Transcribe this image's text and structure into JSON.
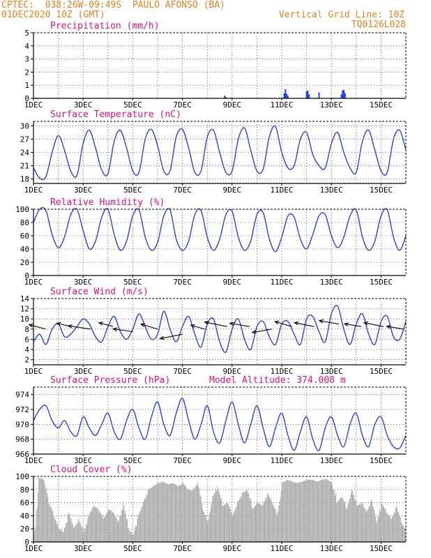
{
  "header": {
    "line1": "CPTEC:  038:26W-09:49S  PAULO AFONSO (BA)",
    "line2": "01DEC2020 10Z (GMT)",
    "grid_note": "Vertical Grid Line: 10Z",
    "code": "TQ0126L028"
  },
  "colors": {
    "header": "#e8801c",
    "title": "#e0107a",
    "line": "#2b3fe6",
    "cloud": "#a9a9a9"
  },
  "x_ticks": [
    "1DEC",
    "3DEC",
    "5DEC",
    "7DEC",
    "9DEC",
    "11DEC",
    "13DEC",
    "15DEC"
  ],
  "chart_data": [
    {
      "id": "precip",
      "type": "bar",
      "title": "Precipitation (mm/h)",
      "ylim": [
        0,
        5
      ],
      "yticks": [
        0,
        1,
        2,
        3,
        4,
        5
      ],
      "xlim_days": [
        1,
        16
      ],
      "x_days": [
        1.1,
        1.15,
        8.7,
        8.75,
        11.1,
        11.15,
        11.2,
        11.25,
        12.0,
        12.05,
        12.1,
        12.5,
        13.4,
        13.45,
        13.5,
        13.55
      ],
      "values": [
        0.05,
        0.05,
        0.2,
        0.1,
        0.4,
        0.7,
        0.35,
        0.2,
        0.55,
        0.6,
        0.3,
        0.45,
        0.3,
        0.6,
        0.65,
        0.4
      ]
    },
    {
      "id": "temp",
      "type": "line",
      "title": "Surface Temperature (nC)",
      "ylim": [
        17,
        31
      ],
      "yticks": [
        18,
        21,
        24,
        27,
        30
      ],
      "xlim_days": [
        1,
        16
      ],
      "x_days": [
        1.0,
        1.25,
        1.5,
        1.75,
        2.0,
        2.25,
        2.5,
        2.75,
        3.0,
        3.25,
        3.5,
        3.75,
        4.0,
        4.25,
        4.5,
        4.75,
        5.0,
        5.25,
        5.5,
        5.75,
        6.0,
        6.25,
        6.5,
        6.75,
        7.0,
        7.25,
        7.5,
        7.75,
        8.0,
        8.25,
        8.5,
        8.75,
        9.0,
        9.25,
        9.5,
        9.75,
        10.0,
        10.25,
        10.5,
        10.75,
        11.0,
        11.25,
        11.5,
        11.75,
        12.0,
        12.25,
        12.5,
        12.75,
        13.0,
        13.25,
        13.5,
        13.75,
        14.0,
        14.25,
        14.5,
        14.75,
        15.0,
        15.25,
        15.5,
        15.75,
        16.0
      ],
      "values": [
        20.5,
        18.2,
        18.5,
        24.0,
        27.8,
        24.5,
        19.8,
        18.8,
        26.0,
        29.0,
        25.0,
        20.0,
        19.2,
        26.5,
        29.0,
        25.0,
        19.8,
        19.5,
        27.0,
        29.2,
        25.5,
        19.8,
        19.8,
        27.5,
        29.2,
        25.0,
        19.5,
        19.8,
        27.5,
        29.0,
        24.0,
        19.5,
        19.8,
        27.0,
        29.5,
        24.5,
        19.8,
        20.2,
        27.5,
        29.8,
        24.0,
        20.5,
        21.0,
        27.0,
        28.5,
        23.5,
        21.0,
        20.5,
        26.0,
        28.5,
        24.0,
        20.5,
        19.5,
        26.5,
        29.0,
        24.5,
        19.8,
        19.5,
        27.0,
        29.0,
        24.5
      ]
    },
    {
      "id": "rh",
      "type": "line",
      "title": "Relative Humidity (%)",
      "ylim": [
        0,
        100
      ],
      "yticks": [
        0,
        20,
        40,
        60,
        80,
        100
      ],
      "xlim_days": [
        1,
        16
      ],
      "x_days": [
        1.0,
        1.25,
        1.5,
        1.75,
        2.0,
        2.25,
        2.5,
        2.75,
        3.0,
        3.25,
        3.5,
        3.75,
        4.0,
        4.25,
        4.5,
        4.75,
        5.0,
        5.25,
        5.5,
        5.75,
        6.0,
        6.25,
        6.5,
        6.75,
        7.0,
        7.25,
        7.5,
        7.75,
        8.0,
        8.25,
        8.5,
        8.75,
        9.0,
        9.25,
        9.5,
        9.75,
        10.0,
        10.25,
        10.5,
        10.75,
        11.0,
        11.25,
        11.5,
        11.75,
        12.0,
        12.25,
        12.5,
        12.75,
        13.0,
        13.25,
        13.5,
        13.75,
        14.0,
        14.25,
        14.5,
        14.75,
        15.0,
        15.25,
        15.5,
        15.75,
        16.0
      ],
      "values": [
        80,
        100,
        98,
        62,
        42,
        58,
        92,
        100,
        68,
        40,
        52,
        88,
        100,
        62,
        38,
        52,
        90,
        99,
        58,
        38,
        50,
        90,
        99,
        55,
        38,
        52,
        92,
        98,
        58,
        38,
        55,
        92,
        97,
        58,
        38,
        52,
        92,
        95,
        55,
        36,
        58,
        90,
        88,
        55,
        40,
        62,
        90,
        92,
        60,
        42,
        58,
        90,
        99,
        58,
        38,
        52,
        90,
        99,
        58,
        38,
        60
      ]
    },
    {
      "id": "wind",
      "type": "line",
      "title": "Surface Wind (m/s)",
      "ylim": [
        1,
        14
      ],
      "yticks": [
        2,
        4,
        6,
        8,
        10,
        12,
        14
      ],
      "xlim_days": [
        1,
        16
      ],
      "x_days": [
        1.0,
        1.25,
        1.5,
        1.75,
        2.0,
        2.25,
        2.5,
        2.75,
        3.0,
        3.25,
        3.5,
        3.75,
        4.0,
        4.25,
        4.5,
        4.75,
        5.0,
        5.25,
        5.5,
        5.75,
        6.0,
        6.25,
        6.5,
        6.75,
        7.0,
        7.25,
        7.5,
        7.75,
        8.0,
        8.25,
        8.5,
        8.75,
        9.0,
        9.25,
        9.5,
        9.75,
        10.0,
        10.25,
        10.5,
        10.75,
        11.0,
        11.25,
        11.5,
        11.75,
        12.0,
        12.25,
        12.5,
        12.75,
        13.0,
        13.25,
        13.5,
        13.75,
        14.0,
        14.25,
        14.5,
        14.75,
        15.0,
        15.25,
        15.5,
        15.75,
        16.0
      ],
      "values": [
        5.5,
        7.0,
        5.0,
        8.0,
        9.0,
        6.5,
        7.0,
        8.5,
        10.0,
        9.0,
        6.5,
        5.5,
        8.5,
        10.5,
        7.5,
        6.0,
        8.0,
        11.0,
        8.5,
        6.0,
        7.0,
        11.5,
        8.0,
        5.5,
        8.5,
        10.5,
        7.0,
        4.5,
        9.0,
        10.0,
        5.5,
        3.5,
        8.0,
        10.0,
        6.0,
        4.0,
        8.5,
        9.5,
        6.5,
        5.0,
        9.0,
        9.5,
        7.0,
        5.0,
        10.0,
        10.5,
        7.5,
        5.5,
        11.0,
        12.5,
        8.0,
        5.0,
        9.0,
        11.0,
        7.0,
        5.0,
        9.5,
        10.5,
        6.5,
        6.0,
        9.5
      ],
      "arrows": [
        {
          "x_day": 1.5,
          "y": 8.0,
          "dx": -0.6,
          "dy": 0.8
        },
        {
          "x_day": 2.5,
          "y": 8.5,
          "dx": -0.5,
          "dy": 0.6
        },
        {
          "x_day": 3.3,
          "y": 8.0,
          "dx": -0.8,
          "dy": 0.6
        },
        {
          "x_day": 4.2,
          "y": 8.5,
          "dx": -0.5,
          "dy": 0.7
        },
        {
          "x_day": 5.0,
          "y": 7.5,
          "dx": -0.7,
          "dy": 0.5
        },
        {
          "x_day": 6.0,
          "y": 8.0,
          "dx": -0.6,
          "dy": 0.9
        },
        {
          "x_day": 7.0,
          "y": 7.0,
          "dx": -0.8,
          "dy": -0.8
        },
        {
          "x_day": 7.9,
          "y": 8.0,
          "dx": -0.5,
          "dy": 0.7
        },
        {
          "x_day": 8.8,
          "y": 8.5,
          "dx": -0.8,
          "dy": 0.8
        },
        {
          "x_day": 9.7,
          "y": 8.5,
          "dx": -0.7,
          "dy": 0.6
        },
        {
          "x_day": 10.6,
          "y": 8.0,
          "dx": -0.7,
          "dy": -0.6
        },
        {
          "x_day": 11.4,
          "y": 8.5,
          "dx": -0.6,
          "dy": 0.9
        },
        {
          "x_day": 12.3,
          "y": 8.5,
          "dx": -0.7,
          "dy": 0.7
        },
        {
          "x_day": 13.3,
          "y": 9.0,
          "dx": -0.7,
          "dy": 0.6
        },
        {
          "x_day": 14.2,
          "y": 8.5,
          "dx": -0.6,
          "dy": 0.5
        },
        {
          "x_day": 15.1,
          "y": 8.5,
          "dx": -0.7,
          "dy": 0.7
        },
        {
          "x_day": 15.9,
          "y": 8.0,
          "dx": -0.6,
          "dy": 0.5
        }
      ]
    },
    {
      "id": "pres",
      "type": "line",
      "title": "Surface Pressure (hPa)",
      "subtitle": "Model Altitude: 374.008 m",
      "ylim": [
        966,
        975
      ],
      "yticks": [
        966,
        968,
        970,
        972,
        974
      ],
      "xlim_days": [
        1,
        16
      ],
      "x_days": [
        1.0,
        1.25,
        1.5,
        1.75,
        2.0,
        2.25,
        2.5,
        2.75,
        3.0,
        3.25,
        3.5,
        3.75,
        4.0,
        4.25,
        4.5,
        4.75,
        5.0,
        5.25,
        5.5,
        5.75,
        6.0,
        6.25,
        6.5,
        6.75,
        7.0,
        7.25,
        7.5,
        7.75,
        8.0,
        8.25,
        8.5,
        8.75,
        9.0,
        9.25,
        9.5,
        9.75,
        10.0,
        10.25,
        10.5,
        10.75,
        11.0,
        11.25,
        11.5,
        11.75,
        12.0,
        12.25,
        12.5,
        12.75,
        13.0,
        13.25,
        13.5,
        13.75,
        14.0,
        14.25,
        14.5,
        14.75,
        15.0,
        15.25,
        15.5,
        15.75,
        16.0
      ],
      "values": [
        970.5,
        972.0,
        972.5,
        970.5,
        969.5,
        970.5,
        969.0,
        968.5,
        971.0,
        969.5,
        968.5,
        970.0,
        971.5,
        969.0,
        968.0,
        970.5,
        972.0,
        969.5,
        968.0,
        971.0,
        973.0,
        970.0,
        968.5,
        971.5,
        973.5,
        970.5,
        968.0,
        970.0,
        972.5,
        969.0,
        967.5,
        970.5,
        973.0,
        970.0,
        967.5,
        970.0,
        972.5,
        969.5,
        967.0,
        969.5,
        971.5,
        968.5,
        966.5,
        969.0,
        971.0,
        968.0,
        966.5,
        969.5,
        971.0,
        968.5,
        967.0,
        970.0,
        971.5,
        968.5,
        967.0,
        970.0,
        971.0,
        968.5,
        967.0,
        966.8,
        968.5
      ]
    },
    {
      "id": "cloud",
      "type": "area",
      "title": "Cloud Cover (%)",
      "ylim": [
        0,
        100
      ],
      "yticks": [
        0,
        20,
        40,
        60,
        80,
        100
      ],
      "xlim_days": [
        1,
        16
      ],
      "x_days": [
        1.0,
        1.2,
        1.4,
        1.6,
        1.8,
        2.0,
        2.2,
        2.4,
        2.6,
        2.8,
        3.0,
        3.2,
        3.4,
        3.6,
        3.8,
        4.0,
        4.2,
        4.4,
        4.6,
        4.8,
        5.0,
        5.2,
        5.4,
        5.6,
        5.8,
        6.0,
        6.2,
        6.4,
        6.6,
        6.8,
        7.0,
        7.2,
        7.4,
        7.6,
        7.8,
        8.0,
        8.2,
        8.4,
        8.6,
        8.8,
        9.0,
        9.2,
        9.4,
        9.6,
        9.8,
        10.0,
        10.2,
        10.4,
        10.6,
        10.8,
        11.0,
        11.2,
        11.4,
        11.6,
        11.8,
        12.0,
        12.2,
        12.4,
        12.6,
        12.8,
        13.0,
        13.2,
        13.4,
        13.6,
        13.8,
        14.0,
        14.2,
        14.4,
        14.6,
        14.8,
        15.0,
        15.2,
        15.4,
        15.6,
        15.8,
        16.0
      ],
      "values": [
        0,
        98,
        95,
        60,
        40,
        20,
        15,
        45,
        20,
        35,
        15,
        40,
        55,
        50,
        35,
        50,
        45,
        30,
        60,
        20,
        10,
        40,
        60,
        80,
        85,
        90,
        92,
        88,
        90,
        85,
        90,
        80,
        78,
        92,
        50,
        30,
        70,
        85,
        55,
        60,
        40,
        60,
        75,
        80,
        50,
        60,
        55,
        75,
        60,
        40,
        90,
        95,
        92,
        90,
        92,
        95,
        95,
        92,
        95,
        96,
        90,
        60,
        70,
        50,
        80,
        55,
        60,
        45,
        65,
        30,
        60,
        45,
        35,
        55,
        30,
        15
      ]
    }
  ]
}
